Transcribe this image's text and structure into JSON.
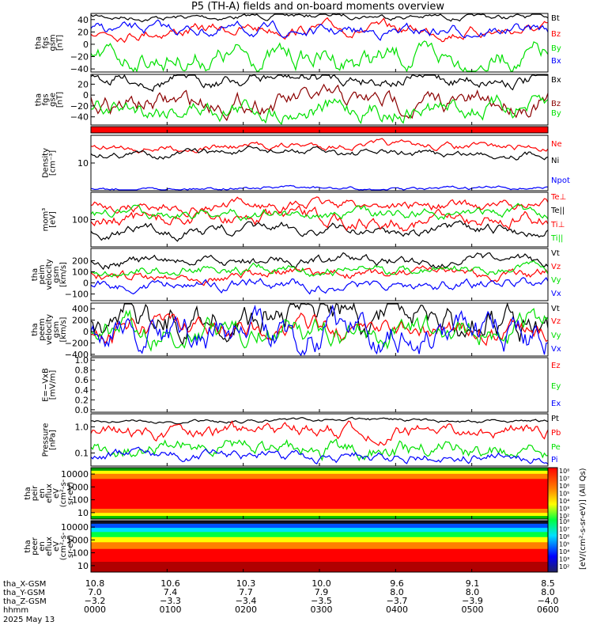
{
  "title": "P5 (TH-A) fields and on-board moments overview",
  "colors": {
    "black": "#000000",
    "red": "#ff0000",
    "green": "#00e000",
    "blue": "#0000ff",
    "darkred": "#8b0000"
  },
  "chart_data": [
    {
      "type": "line",
      "ylabel": [
        "tha",
        "fgs",
        "gsm",
        "[nT]"
      ],
      "ylim": [
        -45,
        50
      ],
      "ticks": [
        "40",
        "20",
        "0",
        "−20",
        "−40"
      ],
      "tick_values": [
        40,
        20,
        0,
        -20,
        -40
      ],
      "series": [
        {
          "name": "Bt",
          "color": "black"
        },
        {
          "name": "Bz",
          "color": "red"
        },
        {
          "name": "By",
          "color": "green"
        },
        {
          "name": "Bx",
          "color": "blue"
        }
      ]
    },
    {
      "type": "line",
      "ylabel": [
        "tha",
        "fgs",
        "gse",
        "[nT]"
      ],
      "ylim": [
        -55,
        38
      ],
      "ticks": [
        "20",
        "0",
        "−20",
        "−40"
      ],
      "tick_values": [
        20,
        0,
        -20,
        -40
      ],
      "series": [
        {
          "name": "Bx",
          "color": "black"
        },
        {
          "name": "Bz",
          "color": "darkred"
        },
        {
          "name": "By",
          "color": "green"
        }
      ]
    },
    {
      "type": "flag",
      "ylabel": [],
      "ticks": [],
      "series": []
    },
    {
      "type": "line",
      "scale": "log",
      "ylabel": [
        "Density",
        "[cm⁻³]"
      ],
      "ticks": [
        "10"
      ],
      "series": [
        {
          "name": "Ne",
          "color": "red"
        },
        {
          "name": "Ni",
          "color": "black"
        },
        {
          "name": "Npot",
          "color": "blue"
        }
      ]
    },
    {
      "type": "line",
      "scale": "log",
      "ylabel": [
        "mom³",
        "[eV]"
      ],
      "ticks": [
        "100"
      ],
      "series": [
        {
          "name": "Te⊥",
          "color": "red"
        },
        {
          "name": "Te||",
          "color": "black"
        },
        {
          "name": "Ti⊥",
          "color": "red"
        },
        {
          "name": "Ti||",
          "color": "green"
        }
      ]
    },
    {
      "type": "line",
      "ylabel": [
        "tha",
        "peim",
        "velocity",
        "gsm",
        "[km/s]"
      ],
      "ylim": [
        -160,
        310
      ],
      "ticks": [
        "200",
        "100",
        "0",
        "−100"
      ],
      "tick_values": [
        200,
        100,
        0,
        -100
      ],
      "series": [
        {
          "name": "Vt",
          "color": "black"
        },
        {
          "name": "Vz",
          "color": "red"
        },
        {
          "name": "Vy",
          "color": "green"
        },
        {
          "name": "Vx",
          "color": "blue"
        }
      ]
    },
    {
      "type": "line",
      "ylabel": [
        "tha",
        "peem",
        "velocity",
        "gsm",
        "[km/s]"
      ],
      "ylim": [
        -430,
        500
      ],
      "ticks": [
        "400",
        "200",
        "0",
        "−200",
        "−400"
      ],
      "tick_values": [
        400,
        200,
        0,
        -200,
        -400
      ],
      "series": [
        {
          "name": "Vt",
          "color": "black"
        },
        {
          "name": "Vz",
          "color": "red"
        },
        {
          "name": "Vy",
          "color": "green"
        },
        {
          "name": "Vx",
          "color": "blue"
        }
      ]
    },
    {
      "type": "line",
      "ylabel": [
        "E=−VxB",
        "[mV/m]"
      ],
      "ylim": [
        -0.05,
        1.05
      ],
      "ticks": [
        "1.0",
        "0.8",
        "0.6",
        "0.4",
        "0.2",
        "0.0"
      ],
      "tick_values": [
        1.0,
        0.8,
        0.6,
        0.4,
        0.2,
        0.0
      ],
      "series": [
        {
          "name": "Ez",
          "color": "red"
        },
        {
          "name": "Ey",
          "color": "green"
        },
        {
          "name": "Ex",
          "color": "blue"
        }
      ]
    },
    {
      "type": "line",
      "scale": "log",
      "ylabel": [
        "Pressure",
        "[nPa]"
      ],
      "ticks": [
        "1.0",
        "0.1"
      ],
      "series": [
        {
          "name": "Pt",
          "color": "black"
        },
        {
          "name": "Pb",
          "color": "red"
        },
        {
          "name": "Pe",
          "color": "green"
        },
        {
          "name": "Pi",
          "color": "blue"
        }
      ]
    },
    {
      "type": "heatmap",
      "scale": "log",
      "ylabel": [
        "tha",
        "peir",
        "en",
        "eflux",
        "eV",
        "(cm²-s-",
        "sr-eV)"
      ],
      "ticks": [
        "10000",
        "1000",
        "100",
        "10"
      ],
      "series": []
    },
    {
      "type": "heatmap",
      "scale": "log",
      "ylabel": [
        "tha",
        "peer",
        "en",
        "eflux",
        "eV",
        "(cm²-s-",
        "sr-eV)"
      ],
      "ticks": [
        "10000",
        "1000",
        "100",
        "10"
      ],
      "series": []
    }
  ],
  "colorbar": {
    "title": "[eV/(cm²-s-sr-eV)] (All Qs)",
    "ticks_top": [
      "10⁸",
      "10⁷",
      "10⁶",
      "10⁵",
      "10⁴",
      "10³",
      "10²"
    ],
    "ticks_bottom": [
      "10⁸",
      "10⁷",
      "10⁶",
      "10⁵",
      "10⁴",
      "10³",
      "10²"
    ]
  },
  "time_axis": {
    "rows": [
      {
        "label": "tha_X-GSM",
        "values": [
          "10.8",
          "10.6",
          "10.3",
          "10.0",
          "9.6",
          "9.1",
          "8.5"
        ]
      },
      {
        "label": "tha_Y-GSM",
        "values": [
          "7.0",
          "7.4",
          "7.7",
          "7.9",
          "8.0",
          "8.0",
          "8.0"
        ]
      },
      {
        "label": "tha_Z-GSM",
        "values": [
          "−3.2",
          "−3.3",
          "−3.4",
          "−3.5",
          "−3.7",
          "−3.9",
          "−4.0"
        ]
      },
      {
        "label": "hhmm",
        "values": [
          "0000",
          "0100",
          "0200",
          "0300",
          "0400",
          "0500",
          "0600"
        ]
      }
    ],
    "date": "2025 May 13"
  }
}
